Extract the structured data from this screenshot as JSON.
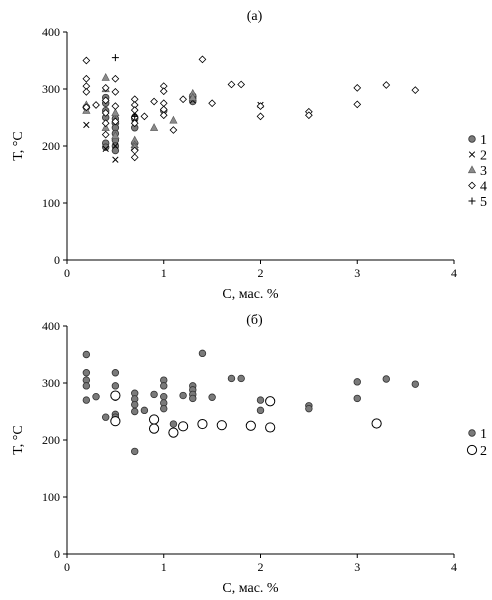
{
  "chart_data": [
    {
      "id": "a",
      "type": "scatter",
      "title": "(а)",
      "xlabel": "C, мас. %",
      "ylabel": "T, °C",
      "xlim": [
        0,
        4
      ],
      "ylim": [
        0,
        400
      ],
      "xticks": [
        "0",
        "1",
        "2",
        "3",
        "4"
      ],
      "yticks": [
        "0",
        "100",
        "200",
        "300",
        "400"
      ],
      "grid": false,
      "legend_position": "right",
      "series": [
        {
          "name": "1",
          "marker": "circle-filled",
          "color": "#7a7a7a",
          "points": [
            [
              0.2,
              268
            ],
            [
              0.4,
              285
            ],
            [
              0.4,
              275
            ],
            [
              0.4,
              262
            ],
            [
              0.4,
              250
            ],
            [
              0.4,
              205
            ],
            [
              0.4,
              198
            ],
            [
              0.5,
              248
            ],
            [
              0.5,
              240
            ],
            [
              0.5,
              232
            ],
            [
              0.5,
              222
            ],
            [
              0.5,
              210
            ],
            [
              0.5,
              200
            ],
            [
              0.5,
              192
            ],
            [
              0.7,
              248
            ],
            [
              0.7,
              232
            ],
            [
              0.7,
              205
            ],
            [
              1.0,
              262
            ],
            [
              1.3,
              288
            ],
            [
              1.3,
              284
            ],
            [
              1.3,
              278
            ]
          ]
        },
        {
          "name": "2",
          "marker": "x",
          "color": "#000000",
          "points": [
            [
              0.2,
              237
            ],
            [
              0.4,
              195
            ],
            [
              0.5,
              176
            ],
            [
              0.5,
              200
            ],
            [
              0.7,
              258
            ],
            [
              0.7,
              248
            ],
            [
              1.3,
              280
            ],
            [
              2.0,
              272
            ]
          ]
        },
        {
          "name": "3",
          "marker": "triangle",
          "color": "#8a8a8a",
          "points": [
            [
              0.2,
              262
            ],
            [
              0.2,
              272
            ],
            [
              0.4,
              320
            ],
            [
              0.4,
              232
            ],
            [
              0.4,
              300
            ],
            [
              0.5,
              258
            ],
            [
              0.5,
              245
            ],
            [
              0.5,
              218
            ],
            [
              0.7,
              210
            ],
            [
              0.7,
              202
            ],
            [
              0.7,
              198
            ],
            [
              0.9,
              232
            ],
            [
              1.1,
              245
            ],
            [
              1.3,
              292
            ],
            [
              1.3,
              285
            ]
          ]
        },
        {
          "name": "4",
          "marker": "diamond-open",
          "color": "#000000",
          "points": [
            [
              0.2,
              350
            ],
            [
              0.2,
              318
            ],
            [
              0.2,
              305
            ],
            [
              0.2,
              295
            ],
            [
              0.2,
              268
            ],
            [
              0.3,
              272
            ],
            [
              0.4,
              302
            ],
            [
              0.4,
              280
            ],
            [
              0.4,
              258
            ],
            [
              0.4,
              240
            ],
            [
              0.4,
              220
            ],
            [
              0.5,
              318
            ],
            [
              0.5,
              295
            ],
            [
              0.5,
              270
            ],
            [
              0.5,
              243
            ],
            [
              0.7,
              282
            ],
            [
              0.7,
              272
            ],
            [
              0.7,
              263
            ],
            [
              0.7,
              250
            ],
            [
              0.7,
              240
            ],
            [
              0.7,
              192
            ],
            [
              0.7,
              180
            ],
            [
              0.8,
              252
            ],
            [
              0.9,
              278
            ],
            [
              1.0,
              305
            ],
            [
              1.0,
              296
            ],
            [
              1.0,
              275
            ],
            [
              1.0,
              264
            ],
            [
              1.0,
              254
            ],
            [
              1.1,
              228
            ],
            [
              1.2,
              282
            ],
            [
              1.4,
              352
            ],
            [
              1.5,
              275
            ],
            [
              1.7,
              308
            ],
            [
              1.8,
              308
            ],
            [
              2.0,
              270
            ],
            [
              2.0,
              252
            ],
            [
              2.5,
              260
            ],
            [
              2.5,
              254
            ],
            [
              3.0,
              302
            ],
            [
              3.0,
              273
            ],
            [
              3.3,
              307
            ],
            [
              3.6,
              298
            ]
          ]
        },
        {
          "name": "5",
          "marker": "plus",
          "color": "#000000",
          "points": [
            [
              0.5,
              355
            ],
            [
              0.7,
              252
            ]
          ]
        }
      ]
    },
    {
      "id": "b",
      "type": "scatter",
      "title": "(б)",
      "xlabel": "C, мас. %",
      "ylabel": "T, °C",
      "xlim": [
        0,
        4
      ],
      "ylim": [
        0,
        400
      ],
      "xticks": [
        "0",
        "1",
        "2",
        "3",
        "4"
      ],
      "yticks": [
        "0",
        "100",
        "200",
        "300",
        "400"
      ],
      "grid": false,
      "legend_position": "right",
      "series": [
        {
          "name": "1",
          "marker": "circle-filled",
          "color": "#7a7a7a",
          "points": [
            [
              0.2,
              350
            ],
            [
              0.2,
              318
            ],
            [
              0.2,
              305
            ],
            [
              0.2,
              295
            ],
            [
              0.2,
              270
            ],
            [
              0.3,
              276
            ],
            [
              0.4,
              240
            ],
            [
              0.5,
              318
            ],
            [
              0.5,
              295
            ],
            [
              0.5,
              275
            ],
            [
              0.5,
              245
            ],
            [
              0.5,
              240
            ],
            [
              0.7,
              282
            ],
            [
              0.7,
              272
            ],
            [
              0.7,
              262
            ],
            [
              0.7,
              250
            ],
            [
              0.7,
              180
            ],
            [
              0.8,
              252
            ],
            [
              0.9,
              280
            ],
            [
              1.0,
              305
            ],
            [
              1.0,
              295
            ],
            [
              1.0,
              276
            ],
            [
              1.0,
              265
            ],
            [
              1.0,
              255
            ],
            [
              1.1,
              228
            ],
            [
              1.2,
              278
            ],
            [
              1.3,
              295
            ],
            [
              1.3,
              288
            ],
            [
              1.3,
              280
            ],
            [
              1.3,
              273
            ],
            [
              1.4,
              352
            ],
            [
              1.5,
              275
            ],
            [
              1.7,
              308
            ],
            [
              1.8,
              308
            ],
            [
              2.0,
              270
            ],
            [
              2.0,
              252
            ],
            [
              2.5,
              260
            ],
            [
              2.5,
              255
            ],
            [
              3.0,
              302
            ],
            [
              3.0,
              273
            ],
            [
              3.3,
              307
            ],
            [
              3.6,
              298
            ]
          ]
        },
        {
          "name": "2",
          "marker": "circle-open",
          "color": "#000000",
          "points": [
            [
              0.5,
              233
            ],
            [
              0.5,
              278
            ],
            [
              0.9,
              236
            ],
            [
              0.9,
              220
            ],
            [
              1.1,
              213
            ],
            [
              1.2,
              224
            ],
            [
              1.4,
              228
            ],
            [
              1.6,
              226
            ],
            [
              1.9,
              225
            ],
            [
              2.1,
              268
            ],
            [
              2.1,
              222
            ],
            [
              3.2,
              229
            ]
          ]
        }
      ]
    }
  ]
}
